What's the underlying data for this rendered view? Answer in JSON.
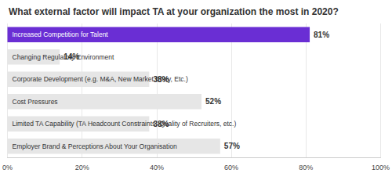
{
  "chart_data": {
    "type": "bar",
    "orientation": "horizontal",
    "title": "What external factor will impact TA at your organization the most in 2020?",
    "categories": [
      "Increased Competition for Talent",
      "Changing Regulatory Environment",
      "Corporate Development (e.g. M&A, New Market Entry, Etc.)",
      "Cost Pressures",
      "Limited TA Capability (TA Headcount Constraints, Quality of Recruiters, etc.)",
      "Employer Brand & Perceptions About Your Organisation"
    ],
    "values": [
      81,
      14,
      38,
      52,
      38,
      57
    ],
    "value_labels": [
      "81%",
      "14%",
      "38%",
      "52%",
      "38%",
      "57%"
    ],
    "colors": [
      "#6a2ed4",
      "#e6e6e6",
      "#e6e6e6",
      "#e6e6e6",
      "#e6e6e6",
      "#e6e6e6"
    ],
    "xlim": [
      0,
      100
    ],
    "xticks": [
      {
        "value": 0,
        "label": "0%"
      },
      {
        "value": 20,
        "label": "20%"
      },
      {
        "value": 40,
        "label": "40%"
      },
      {
        "value": 60,
        "label": "60%"
      },
      {
        "value": 80,
        "label": "80%"
      },
      {
        "value": 100,
        "label": "100%"
      }
    ],
    "grid": true,
    "data_labels": true
  }
}
